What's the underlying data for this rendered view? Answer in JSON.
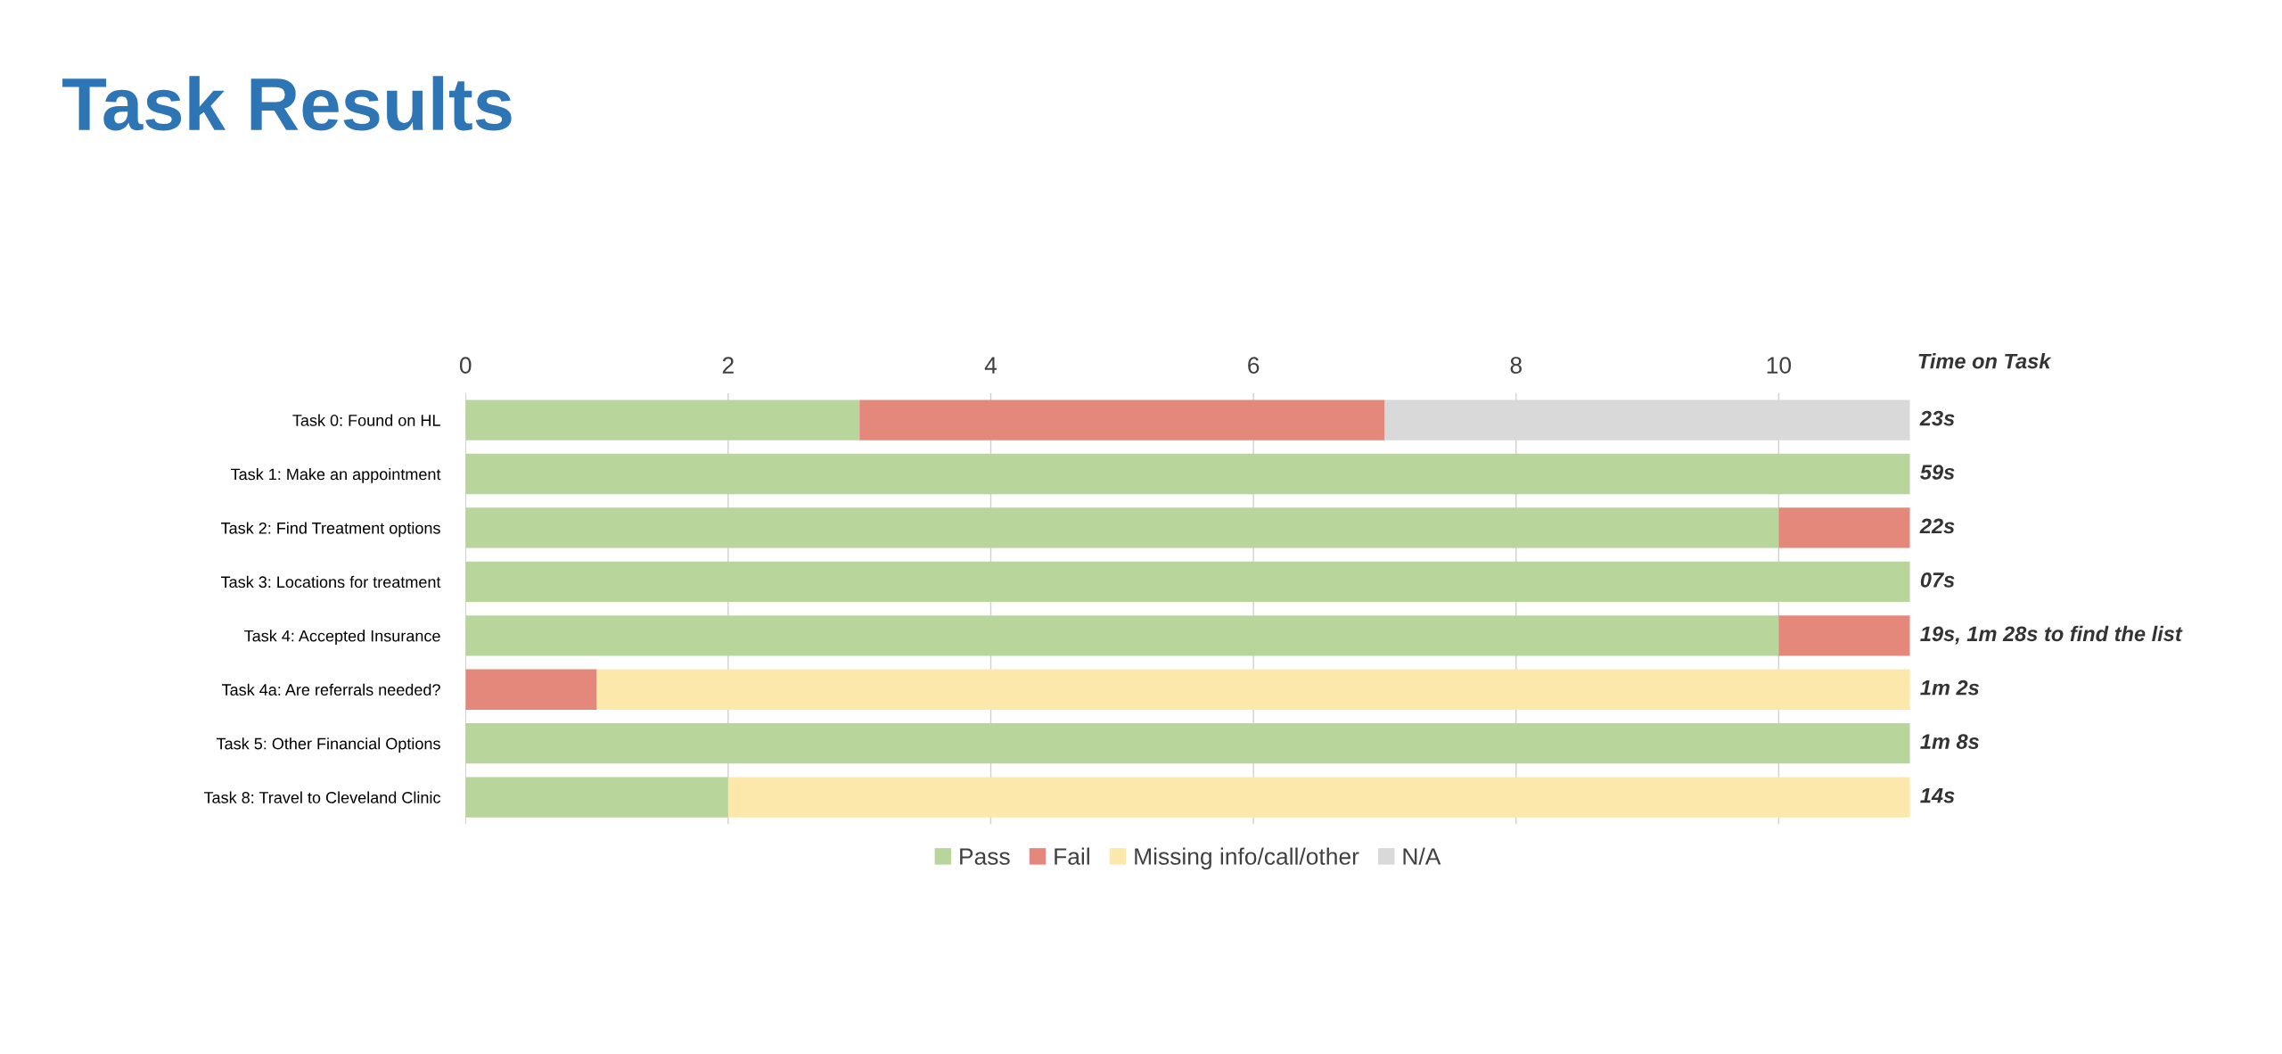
{
  "chart_data": {
    "type": "bar",
    "title": "Task Results",
    "orientation": "horizontal",
    "stacked": true,
    "categories": [
      "Task 0: Found on HL",
      "Task 1: Make an appointment",
      "Task 2: Find Treatment options",
      "Task 3: Locations for treatment",
      "Task 4: Accepted Insurance",
      "Task 4a: Are referrals needed?",
      "Task 5: Other Financial Options",
      "Task 8: Travel to Cleveland Clinic"
    ],
    "series": [
      {
        "name": "Pass",
        "color": "#b8d59b",
        "values": [
          3,
          11,
          10,
          11,
          10,
          0,
          11,
          2
        ]
      },
      {
        "name": "Fail",
        "color": "#e4887c",
        "values": [
          4,
          0,
          1,
          0,
          1,
          1,
          0,
          0
        ]
      },
      {
        "name": "Missing info/call/other",
        "color": "#fde8ac",
        "values": [
          0,
          0,
          0,
          0,
          0,
          10,
          0,
          9
        ]
      },
      {
        "name": "N/A",
        "color": "#d9d9d9",
        "values": [
          4,
          0,
          0,
          0,
          0,
          0,
          0,
          0
        ]
      }
    ],
    "xlim": [
      0,
      11
    ],
    "xticks": [
      0,
      2,
      4,
      6,
      8,
      10
    ],
    "grid": "x",
    "legend": "bottom",
    "annotations": [
      "Time on Task",
      "23s",
      "59s",
      "22s",
      "07s",
      "19s, 1m 28s to find the list",
      "1m 2s",
      "1m 8s",
      "14s"
    ]
  }
}
